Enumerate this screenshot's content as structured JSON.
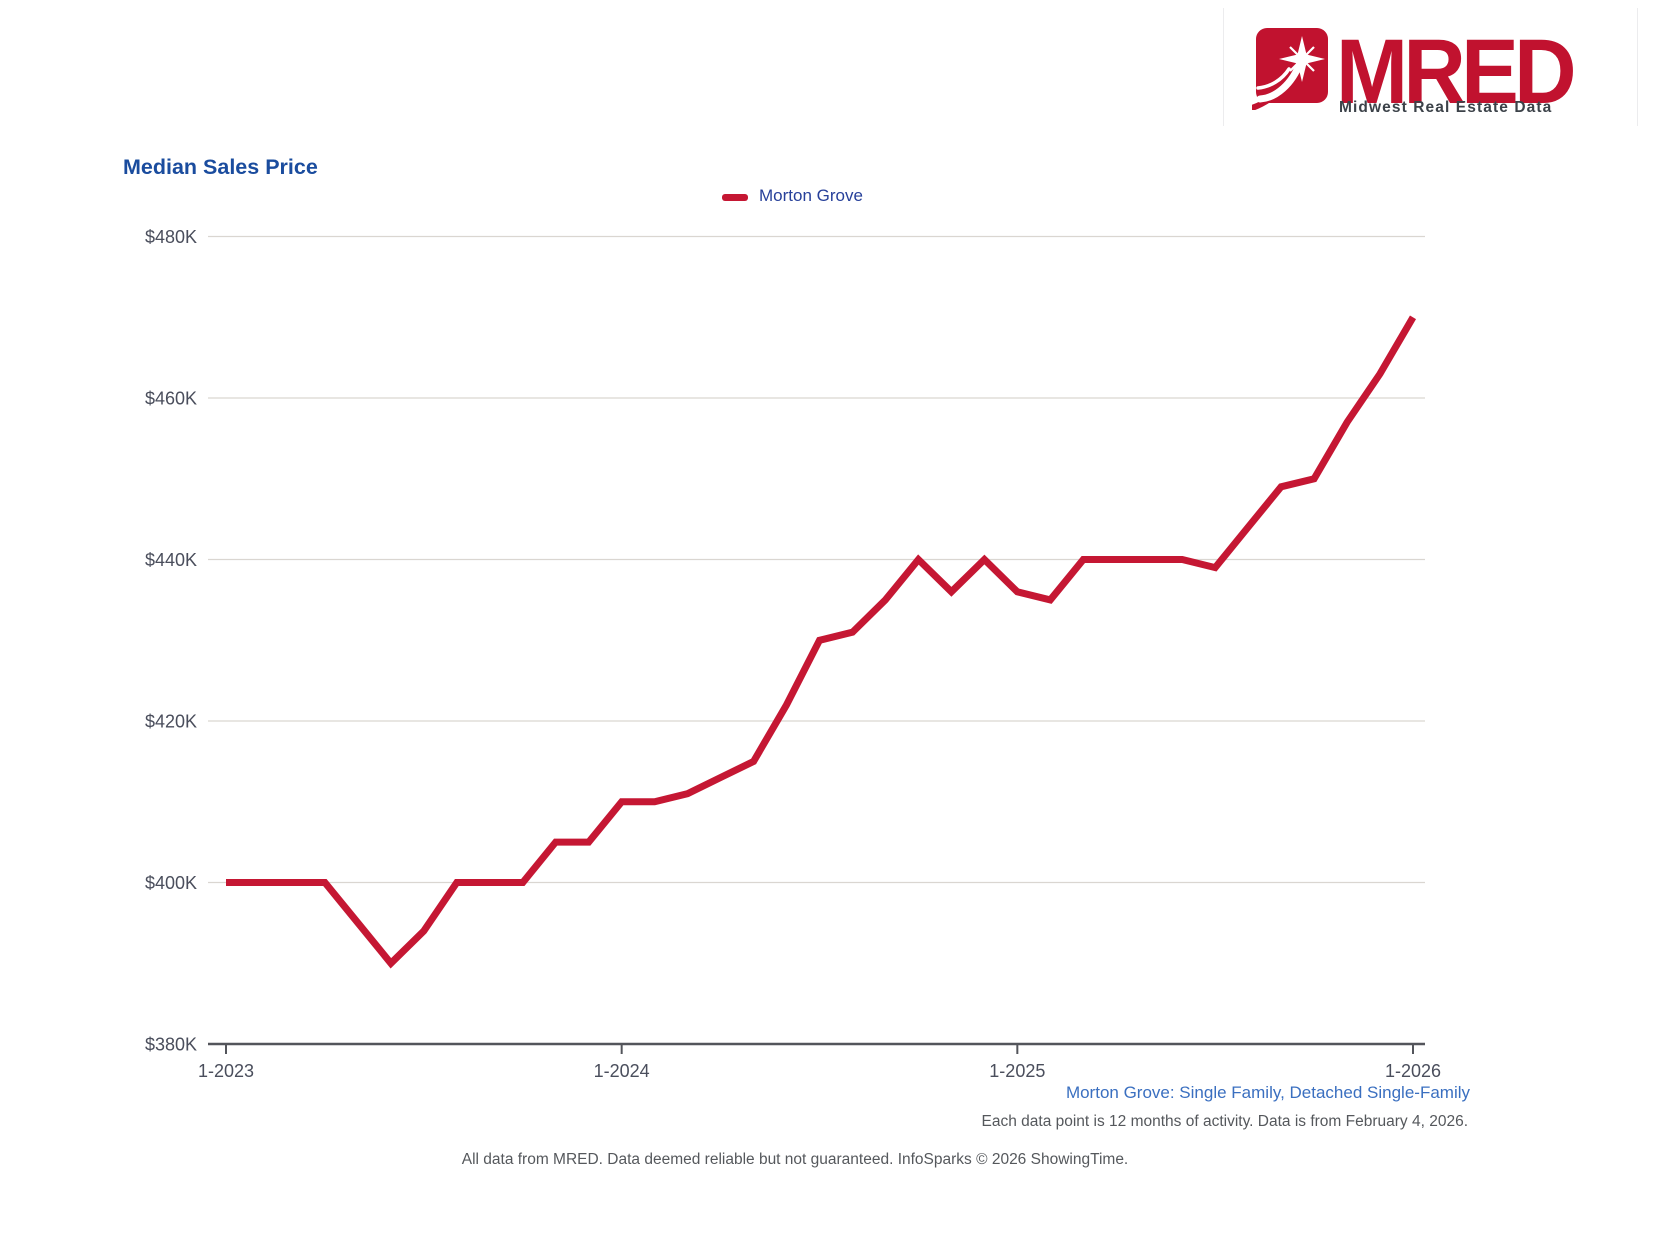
{
  "header": {
    "brand": "MRED",
    "tagline": "Midwest Real Estate Data"
  },
  "colors": {
    "line_red": "#C51733",
    "logo_red": "#C1122F",
    "title_blue": "#1A4C9E",
    "footer_blue": "#3A6FC0",
    "axis_text": "#4A4E5C",
    "gridline": "#DAD6D1",
    "axis_line": "#53555B"
  },
  "chart_data": {
    "type": "line",
    "title": "Median Sales Price",
    "xlabel": "",
    "ylabel": "",
    "ylim": [
      380000,
      480000
    ],
    "y_ticks": [
      380000,
      400000,
      420000,
      440000,
      460000,
      480000
    ],
    "y_tick_labels": [
      "$380K",
      "$400K",
      "$420K",
      "$440K",
      "$460K",
      "$480K"
    ],
    "x_tick_labels": [
      "1-2023",
      "1-2024",
      "1-2025",
      "1-2026"
    ],
    "x_tick_month_indices": [
      0,
      12,
      24,
      36
    ],
    "grid": "horizontal",
    "legend_position": "top-center",
    "months": [
      "1-2023",
      "2-2023",
      "3-2023",
      "4-2023",
      "5-2023",
      "6-2023",
      "7-2023",
      "8-2023",
      "9-2023",
      "10-2023",
      "11-2023",
      "12-2023",
      "1-2024",
      "2-2024",
      "3-2024",
      "4-2024",
      "5-2024",
      "6-2024",
      "7-2024",
      "8-2024",
      "9-2024",
      "10-2024",
      "11-2024",
      "12-2024",
      "1-2025",
      "2-2025",
      "3-2025",
      "4-2025",
      "5-2025",
      "6-2025",
      "7-2025",
      "8-2025",
      "9-2025",
      "10-2025",
      "11-2025",
      "12-2025",
      "1-2026"
    ],
    "series": [
      {
        "name": "Morton Grove",
        "color": "#C51733",
        "values": [
          400000,
          400000,
          400000,
          400000,
          395000,
          390000,
          394000,
          400000,
          400000,
          400000,
          405000,
          405000,
          410000,
          410000,
          411000,
          413000,
          415000,
          422000,
          430000,
          431000,
          435000,
          440000,
          436000,
          440000,
          436000,
          435000,
          440000,
          440000,
          440000,
          440000,
          439000,
          444000,
          449000,
          450000,
          457000,
          463000,
          470000
        ]
      }
    ]
  },
  "footer": {
    "subtitle": "Morton Grove: Single Family, Detached Single-Family",
    "note1": "Each data point is 12 months of activity. Data is from February 4, 2026.",
    "note2": "All data from MRED. Data deemed reliable but not guaranteed. InfoSparks © 2026 ShowingTime."
  }
}
